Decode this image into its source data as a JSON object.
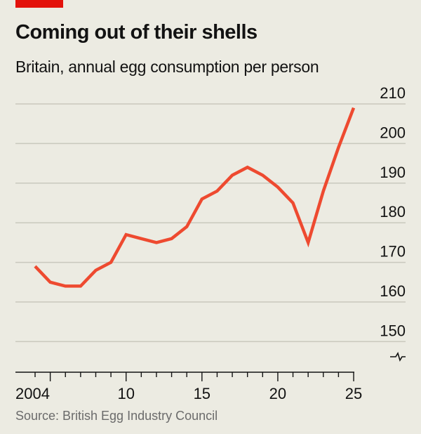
{
  "title": "Coming out of their shells",
  "subtitle": "Britain, annual egg consumption per person",
  "source": "Source: British Egg Industry Council",
  "colors": {
    "line": "#ee4a30",
    "brand": "#e3120b",
    "grid": "#c9c8bd",
    "background": "#ecebe2"
  },
  "chart_data": {
    "type": "line",
    "title": "Coming out of their shells",
    "subtitle": "Britain, annual egg consumption per person",
    "x": [
      2004,
      2005,
      2006,
      2007,
      2008,
      2009,
      2010,
      2011,
      2012,
      2013,
      2014,
      2015,
      2016,
      2017,
      2018,
      2019,
      2020,
      2021,
      2022,
      2023,
      2024,
      2025
    ],
    "series": [
      {
        "values": [
          169,
          165,
          164,
          164,
          168,
          170,
          177,
          176,
          175,
          176,
          179,
          186,
          188,
          192,
          194,
          192,
          189,
          185,
          175,
          188,
          199,
          209
        ]
      }
    ],
    "ylim": [
      150,
      210
    ],
    "yticks": [
      210,
      200,
      190,
      180,
      170,
      160,
      150
    ],
    "ytick_labels": [
      "210",
      "200",
      "190",
      "180",
      "170",
      "160",
      "150"
    ],
    "xticks": [
      2004,
      2010,
      2015,
      2020,
      2025
    ],
    "xtick_labels": [
      "2004",
      "10",
      "15",
      "20",
      "25"
    ],
    "y_axis_position": "right",
    "y_axis_break": true,
    "grid": true
  }
}
